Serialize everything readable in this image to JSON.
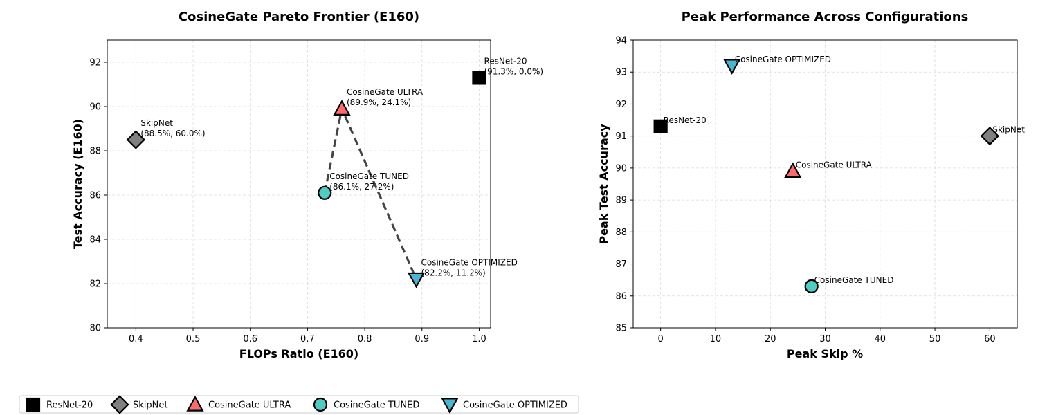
{
  "chart_data": [
    {
      "type": "scatter",
      "title": "CosineGate Pareto Frontier (E160)",
      "xlabel": "FLOPs Ratio (E160)",
      "ylabel": "Test Accuracy (E160)",
      "xlim": [
        0.35,
        1.02
      ],
      "ylim": [
        80,
        93
      ],
      "xticks": [
        0.4,
        0.5,
        0.6,
        0.7,
        0.8,
        0.9,
        1.0
      ],
      "xtick_labels": [
        "0.4",
        "0.5",
        "0.6",
        "0.7",
        "0.8",
        "0.9",
        "1.0"
      ],
      "yticks": [
        80,
        82,
        84,
        86,
        88,
        90,
        92
      ],
      "ytick_labels": [
        "80",
        "82",
        "84",
        "86",
        "88",
        "90",
        "92"
      ],
      "grid": true,
      "points": [
        {
          "series": "ResNet-20",
          "x": 1.0,
          "y": 91.3,
          "label_line1": "ResNet-20",
          "label_line2": "(91.3%, 0.0%)"
        },
        {
          "series": "SkipNet",
          "x": 0.4,
          "y": 88.5,
          "label_line1": "SkipNet",
          "label_line2": "(88.5%, 60.0%)"
        },
        {
          "series": "CosineGate ULTRA",
          "x": 0.76,
          "y": 89.9,
          "label_line1": "CosineGate ULTRA",
          "label_line2": "(89.9%, 24.1%)"
        },
        {
          "series": "CosineGate TUNED",
          "x": 0.73,
          "y": 86.1,
          "label_line1": "CosineGate TUNED",
          "label_line2": "(86.1%, 27.2%)"
        },
        {
          "series": "CosineGate OPTIMIZED",
          "x": 0.89,
          "y": 82.2,
          "label_line1": "CosineGate OPTIMIZED",
          "label_line2": "(82.2%, 11.2%)"
        }
      ],
      "frontier": [
        [
          0.73,
          86.1
        ],
        [
          0.76,
          89.9
        ],
        [
          0.89,
          82.2
        ]
      ]
    },
    {
      "type": "scatter",
      "title": "Peak Performance Across Configurations",
      "xlabel": "Peak Skip %",
      "ylabel": "Peak Test Accuracy",
      "xlim": [
        -5,
        65
      ],
      "ylim": [
        85,
        94
      ],
      "xticks": [
        0,
        10,
        20,
        30,
        40,
        50,
        60
      ],
      "xtick_labels": [
        "0",
        "10",
        "20",
        "30",
        "40",
        "50",
        "60"
      ],
      "yticks": [
        85,
        86,
        87,
        88,
        89,
        90,
        91,
        92,
        93,
        94
      ],
      "ytick_labels": [
        "85",
        "86",
        "87",
        "88",
        "89",
        "90",
        "91",
        "92",
        "93",
        "94"
      ],
      "grid": true,
      "points": [
        {
          "series": "ResNet-20",
          "x": 0,
          "y": 91.3,
          "label": "ResNet-20"
        },
        {
          "series": "SkipNet",
          "x": 60,
          "y": 91.0,
          "label": "SkipNet"
        },
        {
          "series": "CosineGate ULTRA",
          "x": 24.1,
          "y": 89.9,
          "label": "CosineGate ULTRA"
        },
        {
          "series": "CosineGate TUNED",
          "x": 27.5,
          "y": 86.3,
          "label": "CosineGate TUNED"
        },
        {
          "series": "CosineGate OPTIMIZED",
          "x": 13,
          "y": 93.2,
          "label": "CosineGate OPTIMIZED"
        }
      ]
    }
  ],
  "legend": {
    "placement": "bottom-left",
    "items": [
      {
        "label": "ResNet-20",
        "marker": "square",
        "color": "#000000"
      },
      {
        "label": "SkipNet",
        "marker": "diamond",
        "color": "#808080"
      },
      {
        "label": "CosineGate ULTRA",
        "marker": "triangle-up",
        "color": "#ff6b6b"
      },
      {
        "label": "CosineGate TUNED",
        "marker": "circle",
        "color": "#4ecdc4"
      },
      {
        "label": "CosineGate OPTIMIZED",
        "marker": "triangle-down",
        "color": "#45b7d1"
      }
    ]
  },
  "frontier_color": "#444444"
}
